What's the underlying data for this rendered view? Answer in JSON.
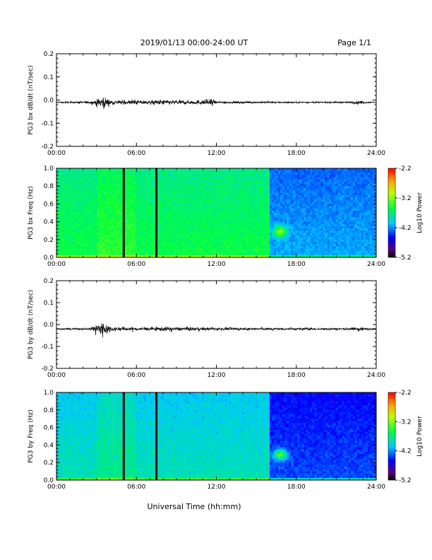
{
  "header": {
    "title": "2019/01/13  00:00-24:00 UT",
    "page": "Page 1/1"
  },
  "xlabel": "Universal Time (hh:mm)",
  "chart_data": [
    {
      "type": "line",
      "ylabel": "PG3 bx dB/dt (nT/sec)",
      "ylim": [
        -0.2,
        0.2
      ],
      "yticks": [
        "0.2",
        "0.1",
        "0.0",
        "-0.1",
        "-0.2"
      ],
      "xticks": [
        "00:00",
        "06:00",
        "12:00",
        "18:00",
        "24:00"
      ],
      "x_hours": [
        0,
        2.5,
        3.2,
        3.5,
        3.8,
        4.2,
        5.0,
        6.0,
        7.0,
        8.0,
        9.0,
        10.0,
        11.0,
        11.6,
        12.0,
        14.0,
        16.0,
        18.0,
        20.0,
        22.0,
        22.8,
        23.2,
        24.0
      ],
      "envelope": [
        0.003,
        0.006,
        0.02,
        0.035,
        0.02,
        0.012,
        0.01,
        0.012,
        0.01,
        0.014,
        0.011,
        0.01,
        0.012,
        0.018,
        0.006,
        0.005,
        0.004,
        0.004,
        0.004,
        0.004,
        0.01,
        0.005,
        0.003
      ],
      "baseline": -0.01
    },
    {
      "type": "heatmap",
      "ylabel": "PG3 bx Freq (Hz)",
      "ylim": [
        0.0,
        1.0
      ],
      "yticks": [
        "1.0",
        "0.8",
        "0.6",
        "0.4",
        "0.2",
        "0.0"
      ],
      "xticks": [
        "00:00",
        "06:00",
        "12:00",
        "18:00",
        "24:00"
      ],
      "colorbar": {
        "label": "Log10 Power",
        "min": -5.2,
        "max": -2.2,
        "ticks": [
          "-2.2",
          "-3.2",
          "-4.2",
          "-5.2"
        ]
      },
      "gaps_hours": [
        5.05,
        7.5
      ],
      "activity": "high"
    },
    {
      "type": "line",
      "ylabel": "PG3 by dB/dt (nT/sec)",
      "ylim": [
        -0.2,
        0.2
      ],
      "yticks": [
        "0.2",
        "0.1",
        "0.0",
        "-0.1",
        "-0.2"
      ],
      "xticks": [
        "00:00",
        "06:00",
        "12:00",
        "18:00",
        "24:00"
      ],
      "x_hours": [
        0,
        2.5,
        3.0,
        3.3,
        3.8,
        4.2,
        5.0,
        6.0,
        7.0,
        8.0,
        9.0,
        10.0,
        11.0,
        12.0,
        14.0,
        16.0,
        18.0,
        20.0,
        22.0,
        22.8,
        23.2,
        24.0
      ],
      "envelope": [
        0.004,
        0.006,
        0.03,
        0.05,
        0.025,
        0.012,
        0.01,
        0.01,
        0.008,
        0.012,
        0.01,
        0.01,
        0.009,
        0.008,
        0.007,
        0.006,
        0.006,
        0.006,
        0.006,
        0.014,
        0.006,
        0.004
      ],
      "baseline": -0.02
    },
    {
      "type": "heatmap",
      "ylabel": "PG3 by Freq (Hz)",
      "ylim": [
        0.0,
        1.0
      ],
      "yticks": [
        "1.0",
        "0.8",
        "0.6",
        "0.4",
        "0.2",
        "0.0"
      ],
      "xticks": [
        "00:00",
        "06:00",
        "12:00",
        "18:00",
        "24:00"
      ],
      "colorbar": {
        "label": "Log10 Power",
        "min": -5.2,
        "max": -2.2,
        "ticks": [
          "-2.2",
          "-3.2",
          "-4.2",
          "-5.2"
        ]
      },
      "gaps_hours": [
        5.05,
        7.5
      ],
      "activity": "low"
    }
  ]
}
